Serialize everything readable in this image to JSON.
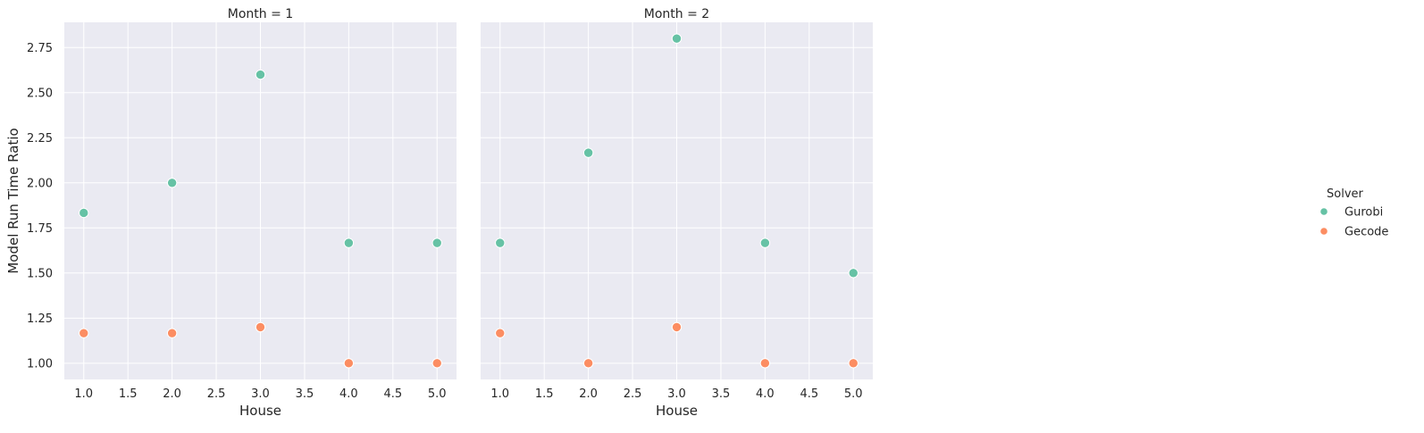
{
  "chart_data": {
    "type": "scatter",
    "facets": [
      {
        "title": "Month = 1",
        "xlabel": "House",
        "ylabel": "Model Run Time Ratio",
        "series": [
          {
            "name": "Gurobi",
            "color": "#66c2a5",
            "points": [
              [
                1,
                1.8333
              ],
              [
                2,
                2.0
              ],
              [
                3,
                2.6
              ],
              [
                4,
                1.6667
              ],
              [
                5,
                1.6667
              ]
            ]
          },
          {
            "name": "Gecode",
            "color": "#fc8d62",
            "points": [
              [
                1,
                1.1667
              ],
              [
                2,
                1.1667
              ],
              [
                3,
                1.2
              ],
              [
                4,
                1.0
              ],
              [
                5,
                1.0
              ]
            ]
          }
        ]
      },
      {
        "title": "Month = 2",
        "xlabel": "House",
        "ylabel": "",
        "series": [
          {
            "name": "Gurobi",
            "color": "#66c2a5",
            "points": [
              [
                1,
                1.6667
              ],
              [
                2,
                2.1667
              ],
              [
                3,
                2.8
              ],
              [
                4,
                1.6667
              ],
              [
                5,
                1.5
              ]
            ]
          },
          {
            "name": "Gecode",
            "color": "#fc8d62",
            "points": [
              [
                1,
                1.1667
              ],
              [
                2,
                1.0
              ],
              [
                3,
                1.2
              ],
              [
                4,
                1.0
              ],
              [
                5,
                1.0
              ]
            ]
          }
        ]
      }
    ],
    "xlim": [
      0.78,
      5.22
    ],
    "ylim": [
      0.91,
      2.89
    ],
    "xticks": [
      1.0,
      1.5,
      2.0,
      2.5,
      3.0,
      3.5,
      4.0,
      4.5,
      5.0
    ],
    "xtick_labels": [
      "1.0",
      "1.5",
      "2.0",
      "2.5",
      "3.0",
      "3.5",
      "4.0",
      "4.5",
      "5.0"
    ],
    "yticks": [
      1.0,
      1.25,
      1.5,
      1.75,
      2.0,
      2.25,
      2.5,
      2.75
    ],
    "ytick_labels": [
      "1.00",
      "1.25",
      "1.50",
      "1.75",
      "2.00",
      "2.25",
      "2.50",
      "2.75"
    ],
    "grid": true,
    "background_color": "#eaeaf2",
    "legend": {
      "title": "Solver",
      "placement": "right",
      "entries": [
        {
          "label": "Gurobi",
          "color": "#66c2a5"
        },
        {
          "label": "Gecode",
          "color": "#fc8d62"
        }
      ]
    }
  }
}
